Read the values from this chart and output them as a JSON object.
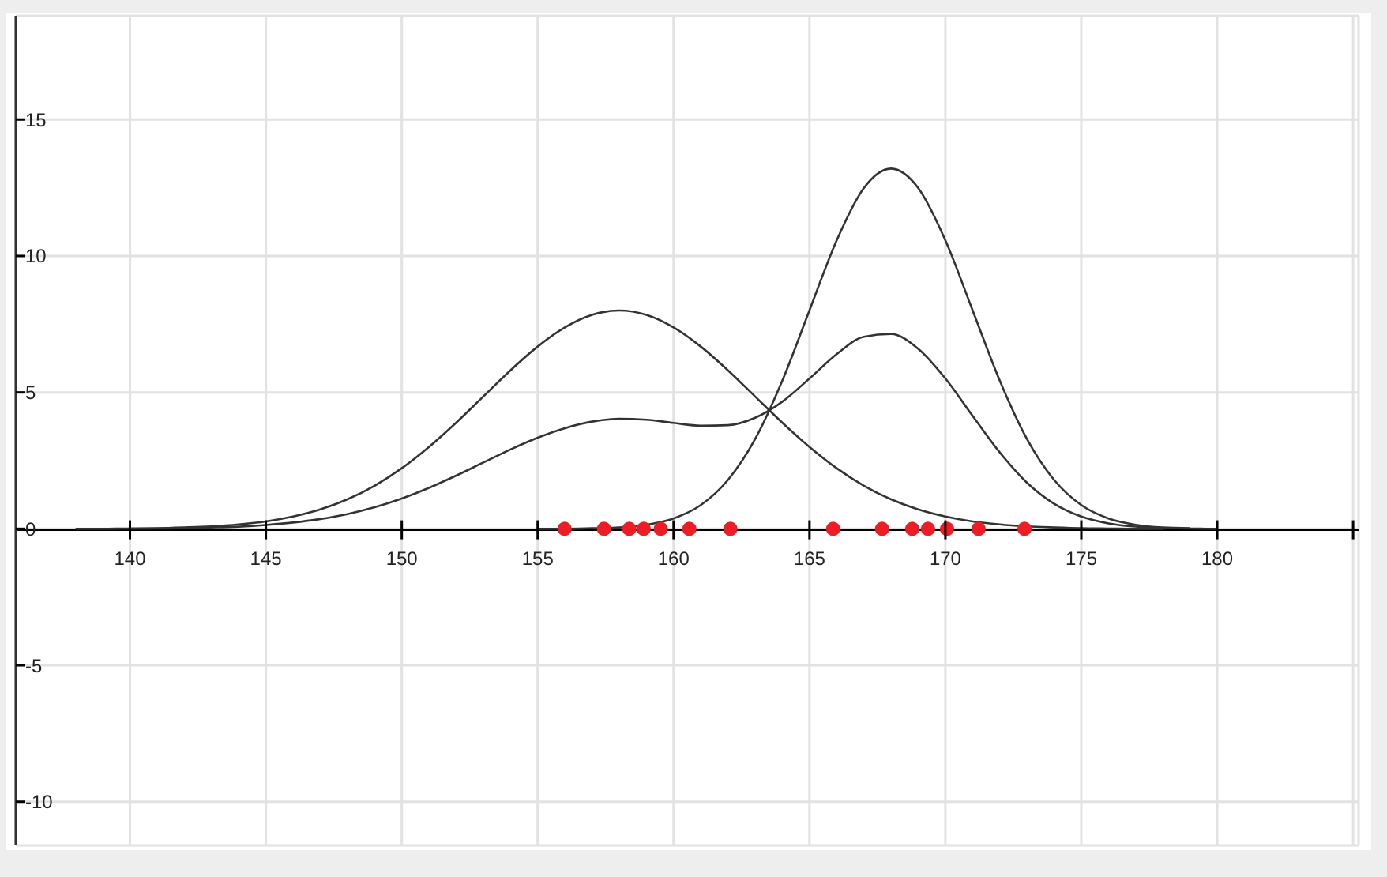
{
  "chart_data": {
    "type": "line",
    "x": [
      138,
      139,
      140,
      141,
      142,
      143,
      144,
      145,
      146,
      147,
      148,
      149,
      150,
      151,
      152,
      153,
      154,
      155,
      156,
      157,
      158,
      159,
      160,
      161,
      162,
      163,
      164,
      165,
      166,
      167,
      168,
      169,
      170,
      171,
      172,
      173,
      174,
      175,
      176,
      177,
      178,
      179,
      180
    ],
    "series": [
      {
        "color": "#333333",
        "x": [
          140,
          141,
          142,
          143,
          144,
          145,
          146,
          147,
          148,
          149,
          150,
          151,
          152,
          153,
          154,
          155,
          156,
          157,
          158,
          159,
          160,
          161,
          162,
          163,
          164,
          165,
          166,
          167,
          168,
          169,
          170,
          171,
          172,
          173,
          174,
          175,
          176,
          177,
          178
        ],
        "values": [
          0.01,
          0.02,
          0.05,
          0.09,
          0.16,
          0.27,
          0.45,
          0.71,
          1.08,
          1.58,
          2.22,
          3.0,
          3.89,
          4.85,
          5.81,
          6.68,
          7.38,
          7.84,
          8.0,
          7.84,
          7.38,
          6.68,
          5.81,
          4.85,
          3.89,
          3.0,
          2.22,
          1.58,
          1.08,
          0.71,
          0.45,
          0.27,
          0.16,
          0.09,
          0.05,
          0.02,
          0.01,
          0,
          0
        ]
      },
      {
        "color": "#333333",
        "x": [
          155,
          156,
          157,
          158,
          159,
          160,
          161,
          162,
          163,
          164,
          165,
          166,
          167,
          168,
          169,
          170,
          171,
          172,
          173,
          174,
          175,
          176,
          177,
          178,
          179
        ],
        "values": [
          0,
          0,
          0.02,
          0.05,
          0.15,
          0.38,
          0.87,
          1.79,
          3.29,
          5.43,
          8.01,
          10.57,
          12.49,
          13.2,
          12.49,
          10.57,
          8.01,
          5.43,
          3.29,
          1.79,
          0.87,
          0.38,
          0.15,
          0.05,
          0.02
        ]
      },
      {
        "color": "#333333",
        "values": [
          0,
          0,
          0.01,
          0.01,
          0.03,
          0.05,
          0.08,
          0.14,
          0.23,
          0.36,
          0.54,
          0.79,
          1.11,
          1.5,
          1.95,
          2.43,
          2.91,
          3.34,
          3.69,
          3.93,
          4.03,
          4.0,
          3.88,
          3.78,
          3.8,
          4.07,
          4.66,
          5.51,
          6.4,
          7.04,
          7.14,
          6.6,
          5.51,
          4.14,
          2.8,
          1.69,
          0.92,
          0.45,
          0.2,
          0.08,
          0.03,
          0.01,
          0
        ]
      },
      {
        "type": "scatter",
        "color": "#ee1c25",
        "marker": "circle",
        "x": [
          155.99,
          157.44,
          158.37,
          158.9,
          159.53,
          160.58,
          162.09,
          165.87,
          167.67,
          168.78,
          169.36,
          170.06,
          171.22,
          172.91
        ],
        "values": [
          0,
          0,
          0,
          0,
          0,
          0,
          0,
          0,
          0,
          0,
          0,
          0,
          0,
          0
        ]
      }
    ],
    "xlim": [
      135.8,
      185.2
    ],
    "xticks": [
      140,
      145,
      150,
      155,
      160,
      165,
      170,
      175,
      180,
      {
        "value": 185,
        "label": null
      }
    ],
    "ylim": [
      -11.6,
      18.8
    ],
    "yticks": [
      -10,
      -5,
      0,
      5,
      10,
      15
    ],
    "grid": true,
    "marker": "none",
    "line_style": "solid"
  }
}
